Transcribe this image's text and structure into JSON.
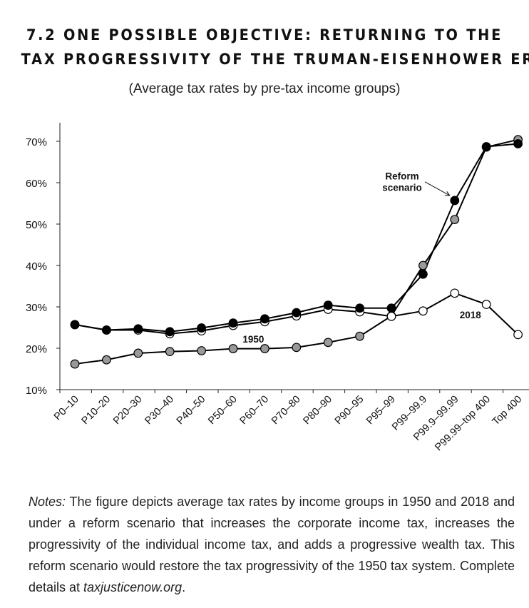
{
  "header": {
    "title_line1": "7.2 ONE POSSIBLE OBJECTIVE: RETURNING TO THE",
    "title_line2": "TAX PROGRESSIVITY OF THE TRUMAN-EISENHOWER ERA",
    "subtitle": "(Average tax rates by pre-tax income groups)"
  },
  "chart_data": {
    "type": "line",
    "categories": [
      "P0–10",
      "P10–20",
      "P20–30",
      "P30–40",
      "P40–50",
      "P50–60",
      "P60–70",
      "P70–80",
      "P80–90",
      "P90–95",
      "P95–99",
      "P99–99.9",
      "P99.9–99.99",
      "P99.99–top 400",
      "Top 400"
    ],
    "ylim": [
      10,
      70
    ],
    "yticks": [
      10,
      20,
      30,
      40,
      50,
      60,
      70
    ],
    "ytick_labels": [
      "10%",
      "20%",
      "30%",
      "40%",
      "50%",
      "60%",
      "70%"
    ],
    "series": [
      {
        "name": "1950",
        "marker": "gray",
        "color": "#999999",
        "values": [
          16.2,
          17.2,
          18.8,
          19.2,
          19.4,
          19.9,
          19.9,
          20.2,
          21.4,
          22.9,
          27.8,
          40.0,
          51.1,
          68.6,
          70.4
        ]
      },
      {
        "name": "2018",
        "marker": "white",
        "color": "#ffffff",
        "values": [
          25.7,
          24.4,
          24.4,
          23.5,
          24.2,
          25.5,
          26.4,
          27.8,
          29.4,
          28.8,
          27.7,
          29.0,
          33.3,
          30.6,
          23.3
        ]
      },
      {
        "name": "Reform scenario",
        "marker": "black",
        "color": "#000000",
        "values": [
          25.7,
          24.4,
          24.7,
          24.0,
          24.9,
          26.1,
          27.1,
          28.6,
          30.4,
          29.7,
          29.7,
          37.9,
          55.7,
          68.7,
          69.4
        ]
      }
    ],
    "annotations": {
      "label_1950": "1950",
      "label_2018": "2018",
      "label_reform_line1": "Reform",
      "label_reform_line2": "scenario"
    }
  },
  "notes": {
    "prefix": "Notes:",
    "body": " The figure depicts average tax rates by income groups in 1950 and 2018 and under a reform scenario that increases the corporate income tax, increases the progressivity of the individual income tax, and adds a progressive wealth tax. This reform scenario would restore the tax progressivity of the 1950 tax system. Complete details at ",
    "link": "taxjusticenow.org",
    "suffix": "."
  }
}
